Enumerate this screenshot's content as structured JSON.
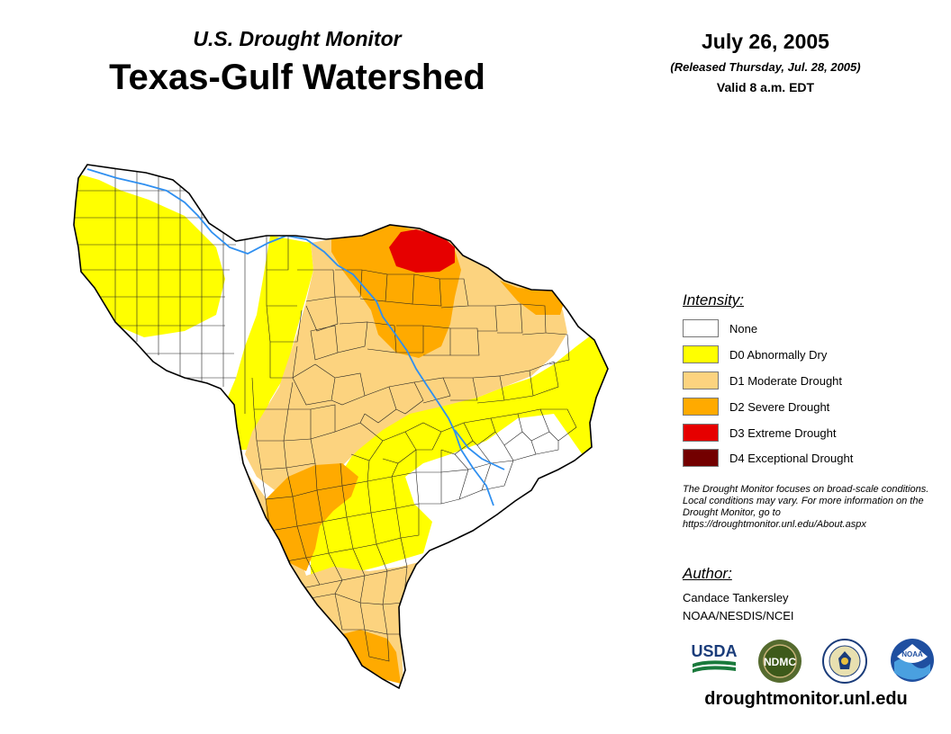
{
  "header": {
    "subtitle": "U.S. Drought Monitor",
    "title": "Texas-Gulf Watershed",
    "date": "July 26, 2005",
    "released": "(Released Thursday, Jul. 28, 2005)",
    "valid": "Valid 8 a.m. EDT"
  },
  "legend": {
    "heading": "Intensity:",
    "items": [
      {
        "label": "None",
        "color": "#ffffff"
      },
      {
        "label": "D0 Abnormally Dry",
        "color": "#ffff00"
      },
      {
        "label": "D1 Moderate Drought",
        "color": "#fcd37f"
      },
      {
        "label": "D2 Severe Drought",
        "color": "#ffaa00"
      },
      {
        "label": "D3 Extreme Drought",
        "color": "#e60000"
      },
      {
        "label": "D4 Exceptional Drought",
        "color": "#730000"
      }
    ]
  },
  "note": "The Drought Monitor focuses on broad-scale conditions. Local conditions may vary. For more information on the Drought Monitor, go to https://droughtmonitor.unl.edu/About.aspx",
  "author": {
    "heading": "Author:",
    "name": "Candace Tankersley",
    "org": "NOAA/NESDIS/NCEI"
  },
  "logos": {
    "usda": "USDA",
    "ndmc": "NDMC",
    "noaa": "NOAA"
  },
  "website": "droughtmonitor.unl.edu"
}
